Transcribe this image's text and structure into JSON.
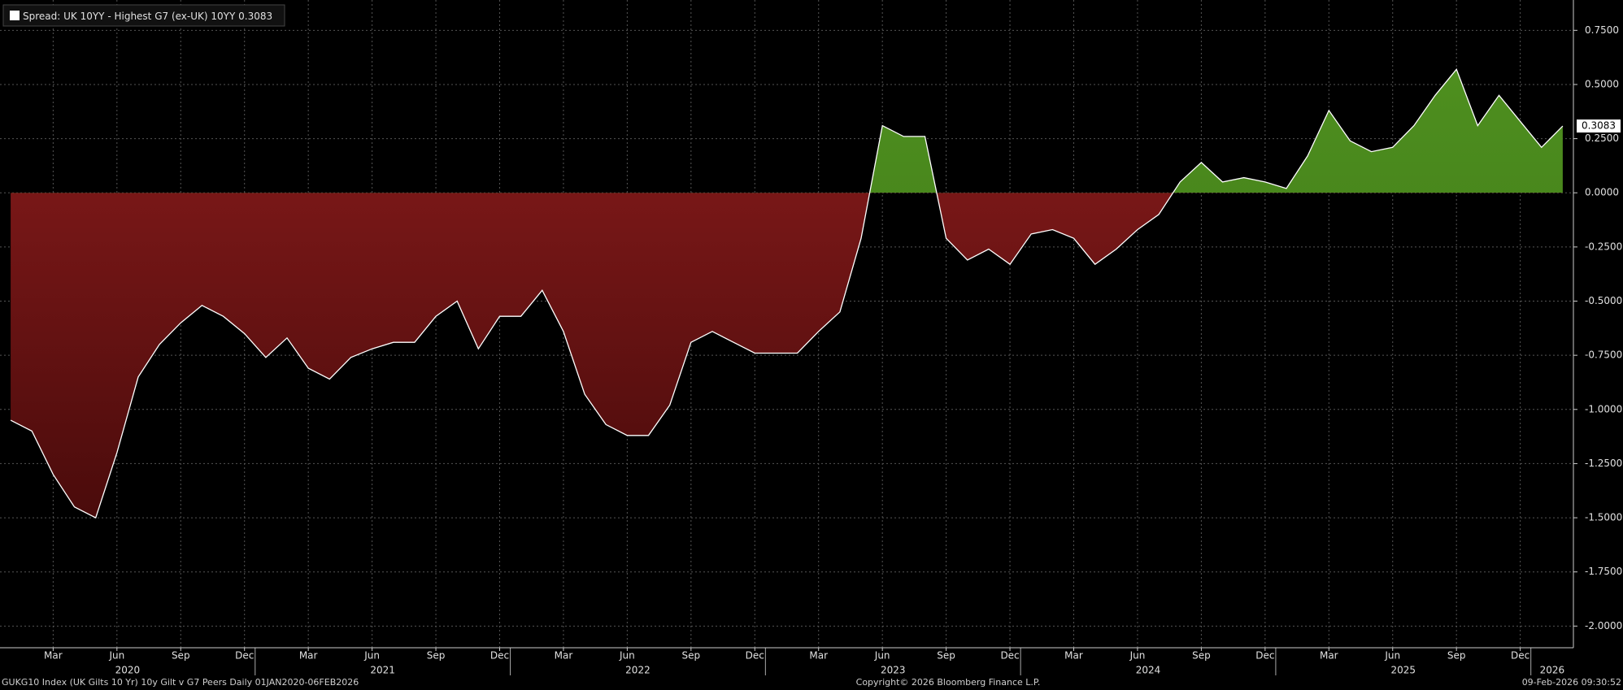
{
  "chart_data": {
    "type": "area",
    "series": [
      {
        "name": "Spread: UK 10YY - Highest G7 (ex-UK) 10YY",
        "color": "#ffffff",
        "values": [
          -1.05,
          -1.1,
          -1.3,
          -1.45,
          -1.5,
          -1.2,
          -0.85,
          -0.7,
          -0.6,
          -0.52,
          -0.57,
          -0.65,
          -0.76,
          -0.67,
          -0.81,
          -0.86,
          -0.76,
          -0.72,
          -0.69,
          -0.69,
          -0.57,
          -0.5,
          -0.72,
          -0.57,
          -0.57,
          -0.45,
          -0.64,
          -0.93,
          -1.07,
          -1.12,
          -1.12,
          -0.98,
          -0.69,
          -0.64,
          -0.69,
          -0.74,
          -0.74,
          -0.74,
          -0.64,
          -0.55,
          -0.21,
          0.31,
          0.26,
          0.26,
          -0.21,
          -0.31,
          -0.26,
          -0.33,
          -0.19,
          -0.17,
          -0.21,
          -0.33,
          -0.26,
          -0.17,
          -0.1,
          0.05,
          0.14,
          0.05,
          0.07,
          0.05,
          0.02,
          0.17,
          0.38,
          0.24,
          0.19,
          0.21,
          0.31,
          0.45,
          0.57,
          0.31,
          0.45,
          0.33,
          0.21,
          0.3083
        ]
      }
    ],
    "x": [
      "2020-01",
      "2020-02",
      "2020-03",
      "2020-04",
      "2020-05",
      "2020-06",
      "2020-07",
      "2020-08",
      "2020-09",
      "2020-10",
      "2020-11",
      "2020-12",
      "2021-01",
      "2021-02",
      "2021-03",
      "2021-04",
      "2021-05",
      "2021-06",
      "2021-07",
      "2021-08",
      "2021-09",
      "2021-10",
      "2021-11",
      "2021-12",
      "2022-01",
      "2022-02",
      "2022-03",
      "2022-04",
      "2022-05",
      "2022-06",
      "2022-07",
      "2022-08",
      "2022-09",
      "2022-10",
      "2022-11",
      "2022-12",
      "2023-01",
      "2023-02",
      "2023-03",
      "2023-04",
      "2023-05",
      "2023-06",
      "2023-07",
      "2023-08",
      "2023-09",
      "2023-10",
      "2023-11",
      "2023-12",
      "2024-01",
      "2024-02",
      "2024-03",
      "2024-04",
      "2024-05",
      "2024-06",
      "2024-07",
      "2024-08",
      "2024-09",
      "2024-10",
      "2024-11",
      "2024-12",
      "2025-01",
      "2025-02",
      "2025-03",
      "2025-04",
      "2025-05",
      "2025-06",
      "2025-07",
      "2025-08",
      "2025-09",
      "2025-10",
      "2025-11",
      "2025-12",
      "2026-01",
      "2026-02"
    ],
    "last_value": 0.3083,
    "fill_positive": [
      "#4e8f1f",
      "#3c7416"
    ],
    "fill_negative": [
      "#8a1c1c",
      "#4a0b0b"
    ],
    "xlim": [
      "2020-01",
      "2026-02"
    ],
    "xticks": [
      {
        "value": "2020-03",
        "label": "Mar"
      },
      {
        "value": "2020-06",
        "label": "Jun"
      },
      {
        "value": "2020-09",
        "label": "Sep"
      },
      {
        "value": "2020-12",
        "label": "Dec"
      },
      {
        "value": "2021-03",
        "label": "Mar"
      },
      {
        "value": "2021-06",
        "label": "Jun"
      },
      {
        "value": "2021-09",
        "label": "Sep"
      },
      {
        "value": "2021-12",
        "label": "Dec"
      },
      {
        "value": "2022-03",
        "label": "Mar"
      },
      {
        "value": "2022-06",
        "label": "Jun"
      },
      {
        "value": "2022-09",
        "label": "Sep"
      },
      {
        "value": "2022-12",
        "label": "Dec"
      },
      {
        "value": "2023-03",
        "label": "Mar"
      },
      {
        "value": "2023-06",
        "label": "Jun"
      },
      {
        "value": "2023-09",
        "label": "Sep"
      },
      {
        "value": "2023-12",
        "label": "Dec"
      },
      {
        "value": "2024-03",
        "label": "Mar"
      },
      {
        "value": "2024-06",
        "label": "Jun"
      },
      {
        "value": "2024-09",
        "label": "Sep"
      },
      {
        "value": "2024-12",
        "label": "Dec"
      },
      {
        "value": "2025-03",
        "label": "Mar"
      },
      {
        "value": "2025-06",
        "label": "Jun"
      },
      {
        "value": "2025-09",
        "label": "Sep"
      },
      {
        "value": "2025-12",
        "label": "Dec"
      }
    ],
    "x_years": [
      "2020",
      "2021",
      "2022",
      "2023",
      "2024",
      "2025",
      "2026"
    ],
    "ylim": [
      -2.1,
      0.89
    ],
    "yticks": [
      {
        "value": 0.75,
        "label": "0.7500"
      },
      {
        "value": 0.5,
        "label": "0.5000"
      },
      {
        "value": 0.25,
        "label": "0.2500"
      },
      {
        "value": 0,
        "label": "0.0000"
      },
      {
        "value": -0.25,
        "label": "-0.2500"
      },
      {
        "value": -0.5,
        "label": "-0.5000"
      },
      {
        "value": -0.75,
        "label": "-0.7500"
      },
      {
        "value": -1,
        "label": "-1.0000"
      },
      {
        "value": -1.25,
        "label": "-1.2500"
      },
      {
        "value": -1.5,
        "label": "-1.5000"
      },
      {
        "value": -1.75,
        "label": "-1.7500"
      },
      {
        "value": -2,
        "label": "-2.0000"
      }
    ],
    "grid": true,
    "source": "GUKG10 Index (UK Gilts 10 Yr) 10y Gilt v G7 Peers Daily 01JAN2020-06FEB2026",
    "copyright": "Copyright© 2026 Bloomberg Finance L.P.",
    "timestamp": "09-Feb-2026 09:30:52"
  }
}
